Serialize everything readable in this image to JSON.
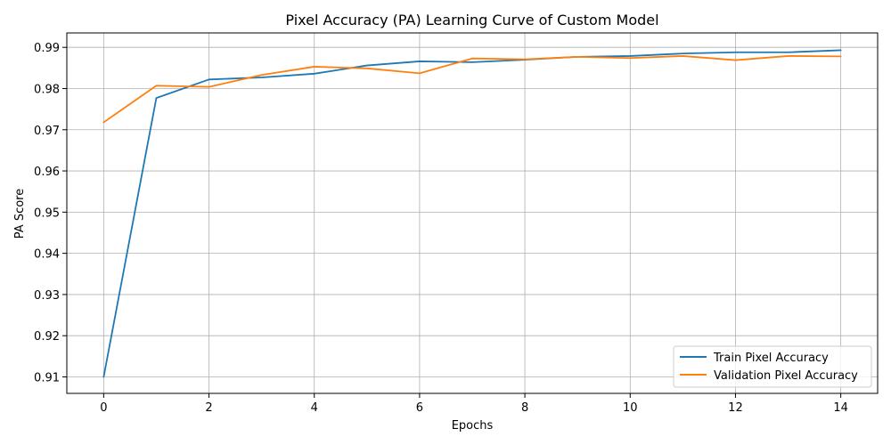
{
  "chart_data": {
    "type": "line",
    "title": "Pixel Accuracy (PA) Learning Curve of Custom Model",
    "xlabel": "Epochs",
    "ylabel": "PA Score",
    "xlim": [
      -0.7,
      14.7
    ],
    "ylim": [
      0.906,
      0.9935
    ],
    "x_ticks": [
      0,
      2,
      4,
      6,
      8,
      10,
      12,
      14
    ],
    "y_ticks": [
      0.91,
      0.92,
      0.93,
      0.94,
      0.95,
      0.96,
      0.97,
      0.98,
      0.99
    ],
    "grid": true,
    "legend_position": "lower-right",
    "x": [
      0,
      1,
      2,
      3,
      4,
      5,
      6,
      7,
      8,
      9,
      10,
      11,
      12,
      13,
      14
    ],
    "series": [
      {
        "name": "Train Pixel Accuracy",
        "color": "#1f77b4",
        "values": [
          0.91,
          0.9777,
          0.9822,
          0.9827,
          0.9836,
          0.9856,
          0.9866,
          0.9864,
          0.987,
          0.9877,
          0.9879,
          0.9885,
          0.9888,
          0.9888,
          0.9893
        ]
      },
      {
        "name": "Validation Pixel Accuracy",
        "color": "#ff7f0e",
        "values": [
          0.9718,
          0.9807,
          0.9804,
          0.9833,
          0.9853,
          0.9849,
          0.9837,
          0.9873,
          0.9871,
          0.9877,
          0.9874,
          0.9879,
          0.9869,
          0.9879,
          0.9878
        ]
      }
    ]
  }
}
